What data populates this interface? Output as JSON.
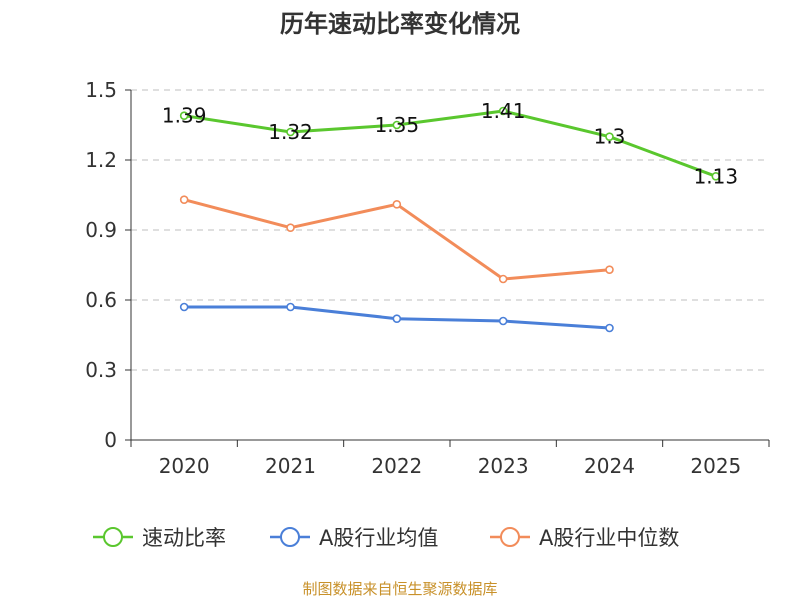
{
  "chart_data": {
    "type": "line",
    "title": "历年速动比率变化情况",
    "categories": [
      "2020",
      "2021",
      "2022",
      "2023",
      "2024",
      "2025"
    ],
    "y_ticks": [
      "0",
      "0.3",
      "0.6",
      "0.9",
      "1.2",
      "1.5"
    ],
    "ylim": [
      0,
      1.5
    ],
    "grid": true,
    "legend_position": "bottom",
    "series": [
      {
        "name": "速动比率",
        "color": "#5ac72e",
        "values": [
          1.39,
          1.32,
          1.35,
          1.41,
          1.3,
          1.13
        ],
        "data_labels": [
          "1.39",
          "1.32",
          "1.35",
          "1.41",
          "1.3",
          "1.13"
        ]
      },
      {
        "name": "A股行业均值",
        "color": "#4a7fd8",
        "values": [
          0.57,
          0.57,
          0.52,
          0.51,
          0.48,
          null
        ]
      },
      {
        "name": "A股行业中位数",
        "color": "#f28c5a",
        "values": [
          1.03,
          0.91,
          1.01,
          0.69,
          0.73,
          null
        ]
      }
    ]
  },
  "source": "制图数据来自恒生聚源数据库"
}
